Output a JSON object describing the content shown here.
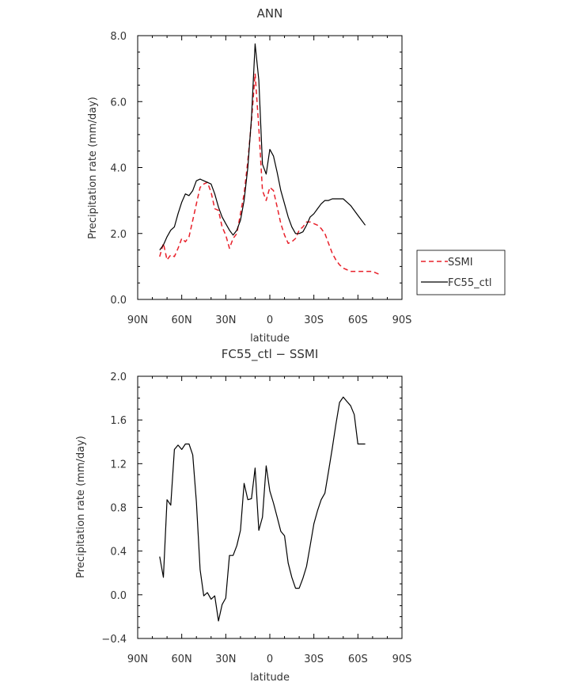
{
  "chart_data": [
    {
      "type": "line",
      "title": "ANN",
      "xlabel": "latitude",
      "ylabel": "Precipitation rate (mm/day)",
      "xlim": [
        90,
        -90
      ],
      "ylim": [
        0.0,
        8.0
      ],
      "x_ticks": [
        90,
        60,
        30,
        0,
        -30,
        -60,
        -90
      ],
      "x_tick_labels": [
        "90N",
        "60N",
        "30N",
        "0",
        "30S",
        "60S",
        "90S"
      ],
      "y_ticks": [
        0,
        2,
        4,
        6,
        8
      ],
      "y_tick_labels": [
        "0.0",
        "2.0",
        "4.0",
        "6.0",
        "8.0"
      ],
      "legend_position": "right",
      "series": [
        {
          "name": "SSMI",
          "color": "#e8202a",
          "dash": "dashed",
          "lat": [
            75,
            72.5,
            70,
            67.5,
            65,
            62.5,
            60,
            57.5,
            55,
            52.5,
            50,
            47.5,
            45,
            42.5,
            40,
            37.5,
            35,
            32.5,
            30,
            27.5,
            25,
            22.5,
            20,
            17.5,
            15,
            12.5,
            10,
            7.5,
            5,
            2.5,
            0,
            -2.5,
            -5,
            -7.5,
            -10,
            -12.5,
            -15,
            -17.5,
            -20,
            -22.5,
            -25,
            -27.5,
            -30,
            -32.5,
            -35,
            -37.5,
            -40,
            -42.5,
            -45,
            -47.5,
            -50,
            -52.5,
            -55,
            -57.5,
            -60,
            -62.5,
            -65,
            -67.5,
            -70,
            -72.5,
            -75
          ],
          "values": [
            1.3,
            1.7,
            1.2,
            1.35,
            1.3,
            1.55,
            1.85,
            1.75,
            1.9,
            2.4,
            2.9,
            3.4,
            3.5,
            3.55,
            3.25,
            2.75,
            2.7,
            2.2,
            1.95,
            1.55,
            1.85,
            2.0,
            2.6,
            3.2,
            4.2,
            5.4,
            6.85,
            5.2,
            3.3,
            3.0,
            3.4,
            3.3,
            2.8,
            2.3,
            1.95,
            1.7,
            1.75,
            1.85,
            2.1,
            2.2,
            2.35,
            2.35,
            2.3,
            2.25,
            2.15,
            2.0,
            1.7,
            1.4,
            1.2,
            1.05,
            0.95,
            0.9,
            0.85,
            0.85,
            0.85,
            0.85,
            0.85,
            0.85,
            0.85,
            0.8,
            0.75
          ]
        },
        {
          "name": "FC55_ctl",
          "color": "#000000",
          "dash": "solid",
          "lat": [
            75,
            72.5,
            70,
            67.5,
            65,
            62.5,
            60,
            57.5,
            55,
            52.5,
            50,
            47.5,
            45,
            42.5,
            40,
            37.5,
            35,
            32.5,
            30,
            27.5,
            25,
            22.5,
            20,
            17.5,
            15,
            12.5,
            10,
            7.5,
            5,
            2.5,
            0,
            -2.5,
            -5,
            -7.5,
            -10,
            -12.5,
            -15,
            -17.5,
            -20,
            -22.5,
            -25,
            -27.5,
            -30,
            -32.5,
            -35,
            -37.5,
            -40,
            -42.5,
            -45,
            -47.5,
            -50,
            -52.5,
            -55,
            -57.5,
            -60,
            -62.5,
            -65
          ],
          "values": [
            1.5,
            1.65,
            1.9,
            2.1,
            2.2,
            2.6,
            2.95,
            3.2,
            3.15,
            3.3,
            3.6,
            3.65,
            3.6,
            3.55,
            3.5,
            3.2,
            2.8,
            2.5,
            2.3,
            2.1,
            1.95,
            2.1,
            2.4,
            3.0,
            4.0,
            5.5,
            7.75,
            6.65,
            4.1,
            3.8,
            4.55,
            4.35,
            3.85,
            3.3,
            2.9,
            2.5,
            2.2,
            2.0,
            2.0,
            2.05,
            2.25,
            2.5,
            2.6,
            2.75,
            2.9,
            3.0,
            3.0,
            3.05,
            3.05,
            3.05,
            3.05,
            2.95,
            2.85,
            2.7,
            2.55,
            2.4,
            2.25
          ]
        }
      ]
    },
    {
      "type": "line",
      "title": "FC55_ctl − SSMI",
      "xlabel": "latitude",
      "ylabel": "Precipitation rate (mm/day)",
      "xlim": [
        90,
        -90
      ],
      "ylim": [
        -0.4,
        2.0
      ],
      "x_ticks": [
        90,
        60,
        30,
        0,
        -30,
        -60,
        -90
      ],
      "x_tick_labels": [
        "90N",
        "60N",
        "30N",
        "0",
        "30S",
        "60S",
        "90S"
      ],
      "y_ticks": [
        -0.4,
        0.0,
        0.4,
        0.8,
        1.2,
        1.6,
        2.0
      ],
      "y_tick_labels": [
        "−0.4",
        "0.0",
        "0.4",
        "0.8",
        "1.2",
        "1.6",
        "2.0"
      ],
      "series": [
        {
          "name": "FC55_ctl − SSMI",
          "color": "#000000",
          "dash": "solid",
          "lat": [
            75,
            72.5,
            70,
            67.5,
            65,
            62.5,
            60,
            57.5,
            55,
            52.5,
            50,
            47.5,
            45,
            42.5,
            40,
            37.5,
            35,
            32.5,
            30,
            27.5,
            25,
            22.5,
            20,
            17.5,
            15,
            12.5,
            10,
            7.5,
            5,
            2.5,
            0,
            -2.5,
            -5,
            -7.5,
            -10,
            -12.5,
            -15,
            -17.5,
            -20,
            -22.5,
            -25,
            -27.5,
            -30,
            -32.5,
            -35,
            -37.5,
            -40,
            -42.5,
            -45,
            -47.5,
            -50,
            -52.5,
            -55,
            -57.5,
            -60,
            -62.5,
            -65
          ],
          "values": [
            0.35,
            0.16,
            0.87,
            0.82,
            1.33,
            1.37,
            1.33,
            1.38,
            1.38,
            1.28,
            0.85,
            0.23,
            -0.01,
            0.02,
            -0.04,
            -0.01,
            -0.24,
            -0.09,
            -0.03,
            0.36,
            0.36,
            0.45,
            0.59,
            1.02,
            0.87,
            0.88,
            1.16,
            0.59,
            0.71,
            1.18,
            0.95,
            0.84,
            0.71,
            0.58,
            0.54,
            0.29,
            0.16,
            0.06,
            0.06,
            0.15,
            0.26,
            0.45,
            0.65,
            0.77,
            0.87,
            0.93,
            1.13,
            1.34,
            1.56,
            1.76,
            1.81,
            1.77,
            1.73,
            1.65,
            1.38,
            1.38,
            1.38
          ]
        }
      ]
    }
  ]
}
